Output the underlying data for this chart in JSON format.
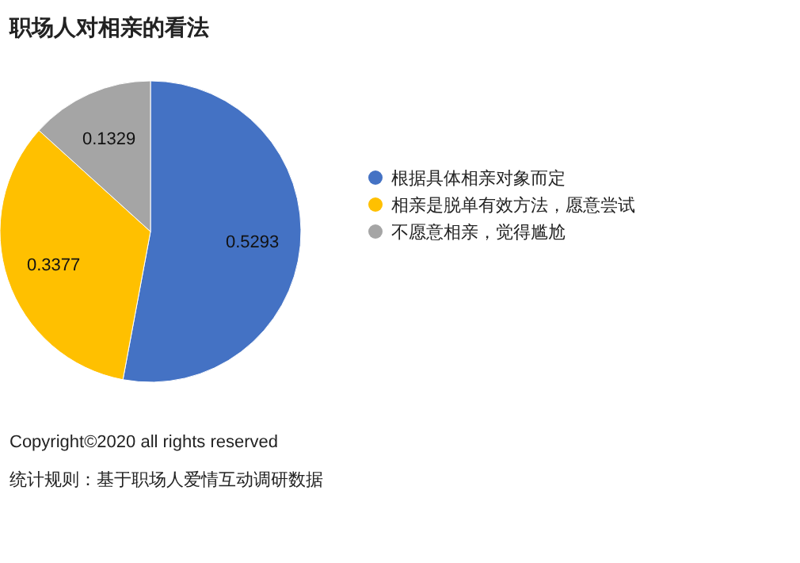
{
  "chart_data": {
    "type": "pie",
    "title": "职场人对相亲的看法",
    "categories": [
      "根据具体相亲对象而定",
      "相亲是脱单有效方法，愿意尝试",
      "不愿意相亲，觉得尴尬"
    ],
    "values": [
      0.5293,
      0.3377,
      0.1329
    ],
    "colors": [
      "#4472c4",
      "#ffc000",
      "#a5a5a5"
    ],
    "data_labels": true,
    "legend": "right",
    "annotations": [
      "Copyright©2020 all rights reserved",
      "统计规则：基于职场人爱情互动调研数据"
    ]
  }
}
